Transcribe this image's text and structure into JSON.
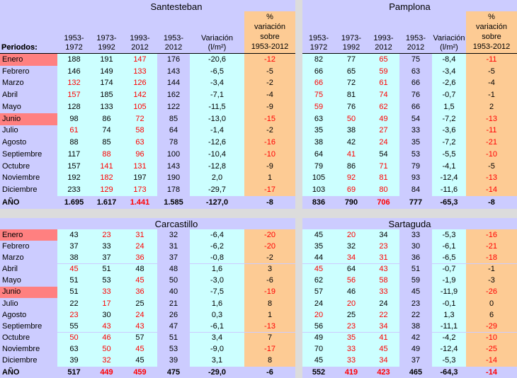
{
  "colors": {
    "background_lavender": "#CCCCFF",
    "data_cyan": "#CCFFFF",
    "pct_column_tan": "#FDCB94",
    "highlight_salmon": "#FF8080",
    "divider_gray": "#DCDCDC",
    "negative_highlight_text": "#FF0000",
    "normal_text": "#000000"
  },
  "column_headers": {
    "periodos": "Periodos:",
    "periods": [
      "1953-\n1972",
      "1973-\n1992",
      "1993-\n2012",
      "1953-\n2012"
    ],
    "variation": "Variación\n(l/m²)",
    "pct": "%\nvariación\nsobre\n1953-2012"
  },
  "months": [
    "Enero",
    "Febrero",
    "Marzo",
    "Abril",
    "Mayo",
    "Junio",
    "Julio",
    "Agosto",
    "Septiembre",
    "Octubre",
    "Noviembre",
    "Diciembre"
  ],
  "highlighted_months": [
    "Enero",
    "Junio"
  ],
  "total_label": "AÑO",
  "chart_data": [
    {
      "type": "table",
      "title": "Santesteban",
      "position": "top-left",
      "columns": [
        "Periodos:",
        "1953-1972",
        "1973-1992",
        "1993-2012",
        "1953-2012",
        "Variación (l/m²)",
        "% variación sobre 1953-2012"
      ],
      "rows": [
        {
          "values": [
            "188",
            "191",
            "147",
            "176",
            "-20,6",
            "-12"
          ],
          "red": [
            0,
            0,
            1,
            0,
            0,
            1
          ]
        },
        {
          "values": [
            "146",
            "149",
            "133",
            "143",
            "-6,5",
            "-5"
          ],
          "red": [
            0,
            0,
            1,
            0,
            0,
            0
          ]
        },
        {
          "values": [
            "132",
            "174",
            "126",
            "144",
            "-3,4",
            "-2"
          ],
          "red": [
            1,
            0,
            1,
            0,
            0,
            0
          ]
        },
        {
          "values": [
            "157",
            "185",
            "142",
            "162",
            "-7,1",
            "-4"
          ],
          "red": [
            1,
            0,
            1,
            0,
            0,
            0
          ]
        },
        {
          "values": [
            "128",
            "133",
            "105",
            "122",
            "-11,5",
            "-9"
          ],
          "red": [
            0,
            0,
            1,
            0,
            0,
            0
          ]
        },
        {
          "values": [
            "98",
            "86",
            "72",
            "85",
            "-13,0",
            "-15"
          ],
          "red": [
            0,
            0,
            1,
            0,
            0,
            1
          ]
        },
        {
          "values": [
            "61",
            "74",
            "58",
            "64",
            "-1,4",
            "-2"
          ],
          "red": [
            1,
            0,
            1,
            0,
            0,
            0
          ]
        },
        {
          "values": [
            "88",
            "85",
            "63",
            "78",
            "-12,6",
            "-16"
          ],
          "red": [
            0,
            0,
            1,
            0,
            0,
            1
          ]
        },
        {
          "values": [
            "117",
            "88",
            "96",
            "100",
            "-10,4",
            "-10"
          ],
          "red": [
            0,
            1,
            1,
            0,
            0,
            1
          ]
        },
        {
          "values": [
            "157",
            "141",
            "131",
            "143",
            "-12,8",
            "-9"
          ],
          "red": [
            0,
            1,
            1,
            0,
            0,
            0
          ]
        },
        {
          "values": [
            "192",
            "182",
            "197",
            "190",
            "2,0",
            "1"
          ],
          "red": [
            0,
            1,
            0,
            0,
            0,
            0
          ]
        },
        {
          "values": [
            "233",
            "129",
            "173",
            "178",
            "-29,7",
            "-17"
          ],
          "red": [
            0,
            1,
            1,
            0,
            0,
            1
          ]
        }
      ],
      "total": {
        "values": [
          "1.695",
          "1.617",
          "1.441",
          "1.585",
          "-127,0",
          "-8"
        ],
        "red": [
          0,
          0,
          1,
          0,
          0,
          0
        ]
      }
    },
    {
      "type": "table",
      "title": "Pamplona",
      "position": "top-right",
      "columns": [
        "1953-1972",
        "1973-1992",
        "1993-2012",
        "1953-2012",
        "Variación (l/m²)",
        "% variación sobre 1953-2012"
      ],
      "rows": [
        {
          "values": [
            "82",
            "77",
            "65",
            "75",
            "-8,4",
            "-11"
          ],
          "red": [
            0,
            0,
            1,
            0,
            0,
            1
          ]
        },
        {
          "values": [
            "66",
            "65",
            "59",
            "63",
            "-3,4",
            "-5"
          ],
          "red": [
            0,
            0,
            1,
            0,
            0,
            0
          ]
        },
        {
          "values": [
            "66",
            "72",
            "61",
            "66",
            "-2,6",
            "-4"
          ],
          "red": [
            1,
            0,
            1,
            0,
            0,
            0
          ]
        },
        {
          "values": [
            "75",
            "81",
            "74",
            "76",
            "-0,7",
            "-1"
          ],
          "red": [
            1,
            0,
            1,
            0,
            0,
            0
          ]
        },
        {
          "values": [
            "59",
            "76",
            "62",
            "66",
            "1,5",
            "2"
          ],
          "red": [
            1,
            0,
            1,
            0,
            0,
            0
          ]
        },
        {
          "values": [
            "63",
            "50",
            "49",
            "54",
            "-7,2",
            "-13"
          ],
          "red": [
            0,
            1,
            1,
            0,
            0,
            1
          ]
        },
        {
          "values": [
            "35",
            "38",
            "27",
            "33",
            "-3,6",
            "-11"
          ],
          "red": [
            0,
            0,
            1,
            0,
            0,
            1
          ]
        },
        {
          "values": [
            "38",
            "42",
            "24",
            "35",
            "-7,2",
            "-21"
          ],
          "red": [
            0,
            0,
            1,
            0,
            0,
            1
          ]
        },
        {
          "values": [
            "64",
            "41",
            "54",
            "53",
            "-5,5",
            "-10"
          ],
          "red": [
            0,
            1,
            0,
            0,
            0,
            1
          ]
        },
        {
          "values": [
            "79",
            "86",
            "71",
            "79",
            "-4,1",
            "-5"
          ],
          "red": [
            0,
            0,
            1,
            0,
            0,
            0
          ]
        },
        {
          "values": [
            "105",
            "92",
            "81",
            "93",
            "-12,4",
            "-13"
          ],
          "red": [
            0,
            1,
            1,
            0,
            0,
            1
          ]
        },
        {
          "values": [
            "103",
            "69",
            "80",
            "84",
            "-11,6",
            "-14"
          ],
          "red": [
            0,
            1,
            1,
            0,
            0,
            1
          ]
        }
      ],
      "total": {
        "values": [
          "836",
          "790",
          "706",
          "777",
          "-65,3",
          "-8"
        ],
        "red": [
          0,
          0,
          1,
          0,
          0,
          0
        ]
      }
    },
    {
      "type": "table",
      "title": "Carcastillo",
      "position": "bottom-left",
      "columns": [
        "Periodos:",
        "1953-1972",
        "1973-1992",
        "1993-2012",
        "1953-2012",
        "Variación (l/m²)",
        "% variación sobre 1953-2012"
      ],
      "rows": [
        {
          "values": [
            "43",
            "23",
            "31",
            "32",
            "-6,4",
            "-20"
          ],
          "red": [
            0,
            1,
            1,
            0,
            0,
            1
          ]
        },
        {
          "values": [
            "37",
            "33",
            "24",
            "31",
            "-6,2",
            "-20"
          ],
          "red": [
            0,
            0,
            1,
            0,
            0,
            1
          ]
        },
        {
          "values": [
            "38",
            "37",
            "36",
            "37",
            "-0,8",
            "-2"
          ],
          "red": [
            0,
            0,
            1,
            0,
            0,
            0
          ]
        },
        {
          "values": [
            "45",
            "51",
            "48",
            "48",
            "1,6",
            "3"
          ],
          "red": [
            1,
            0,
            0,
            0,
            0,
            0
          ]
        },
        {
          "values": [
            "51",
            "53",
            "45",
            "50",
            "-3,0",
            "-6"
          ],
          "red": [
            0,
            0,
            1,
            0,
            0,
            0
          ]
        },
        {
          "values": [
            "51",
            "33",
            "36",
            "40",
            "-7,5",
            "-19"
          ],
          "red": [
            0,
            1,
            1,
            0,
            0,
            1
          ]
        },
        {
          "values": [
            "22",
            "17",
            "25",
            "21",
            "1,6",
            "8"
          ],
          "red": [
            0,
            1,
            0,
            0,
            0,
            0
          ]
        },
        {
          "values": [
            "23",
            "30",
            "24",
            "26",
            "0,3",
            "1"
          ],
          "red": [
            1,
            0,
            1,
            0,
            0,
            0
          ]
        },
        {
          "values": [
            "55",
            "43",
            "43",
            "47",
            "-6,1",
            "-13"
          ],
          "red": [
            0,
            1,
            1,
            0,
            0,
            1
          ]
        },
        {
          "values": [
            "50",
            "46",
            "57",
            "51",
            "3,4",
            "7"
          ],
          "red": [
            1,
            1,
            0,
            0,
            0,
            0
          ]
        },
        {
          "values": [
            "63",
            "50",
            "45",
            "53",
            "-9,0",
            "-17"
          ],
          "red": [
            0,
            1,
            1,
            0,
            0,
            1
          ]
        },
        {
          "values": [
            "39",
            "32",
            "45",
            "39",
            "3,1",
            "8"
          ],
          "red": [
            0,
            1,
            0,
            0,
            0,
            0
          ]
        }
      ],
      "total": {
        "values": [
          "517",
          "449",
          "459",
          "475",
          "-29,0",
          "-6"
        ],
        "red": [
          0,
          1,
          1,
          0,
          0,
          0
        ]
      }
    },
    {
      "type": "table",
      "title": "Sartaguda",
      "position": "bottom-right",
      "columns": [
        "1953-1972",
        "1973-1992",
        "1993-2012",
        "1953-2012",
        "Variación (l/m²)",
        "% variación sobre 1953-2012"
      ],
      "rows": [
        {
          "values": [
            "45",
            "20",
            "34",
            "33",
            "-5,3",
            "-16"
          ],
          "red": [
            0,
            1,
            0,
            0,
            0,
            1
          ]
        },
        {
          "values": [
            "35",
            "32",
            "23",
            "30",
            "-6,1",
            "-21"
          ],
          "red": [
            0,
            0,
            1,
            0,
            0,
            1
          ]
        },
        {
          "values": [
            "44",
            "34",
            "31",
            "36",
            "-6,5",
            "-18"
          ],
          "red": [
            0,
            1,
            1,
            0,
            0,
            1
          ]
        },
        {
          "values": [
            "45",
            "64",
            "43",
            "51",
            "-0,7",
            "-1"
          ],
          "red": [
            1,
            0,
            1,
            0,
            0,
            0
          ]
        },
        {
          "values": [
            "62",
            "56",
            "58",
            "59",
            "-1,9",
            "-3"
          ],
          "red": [
            0,
            1,
            1,
            0,
            0,
            0
          ]
        },
        {
          "values": [
            "57",
            "46",
            "33",
            "45",
            "-11,9",
            "-26"
          ],
          "red": [
            0,
            0,
            1,
            0,
            0,
            1
          ]
        },
        {
          "values": [
            "24",
            "20",
            "24",
            "23",
            "-0,1",
            "0"
          ],
          "red": [
            0,
            1,
            0,
            0,
            0,
            0
          ]
        },
        {
          "values": [
            "20",
            "25",
            "22",
            "22",
            "1,3",
            "6"
          ],
          "red": [
            1,
            0,
            1,
            0,
            0,
            0
          ]
        },
        {
          "values": [
            "56",
            "23",
            "34",
            "38",
            "-11,1",
            "-29"
          ],
          "red": [
            0,
            1,
            1,
            0,
            0,
            1
          ]
        },
        {
          "values": [
            "49",
            "35",
            "41",
            "42",
            "-4,2",
            "-10"
          ],
          "red": [
            0,
            1,
            1,
            0,
            0,
            1
          ]
        },
        {
          "values": [
            "70",
            "33",
            "45",
            "49",
            "-12,4",
            "-25"
          ],
          "red": [
            0,
            1,
            1,
            0,
            0,
            1
          ]
        },
        {
          "values": [
            "45",
            "33",
            "34",
            "37",
            "-5,3",
            "-14"
          ],
          "red": [
            0,
            1,
            1,
            0,
            0,
            1
          ]
        }
      ],
      "total": {
        "values": [
          "552",
          "419",
          "423",
          "465",
          "-64,3",
          "-14"
        ],
        "red": [
          0,
          1,
          1,
          0,
          0,
          1
        ]
      }
    }
  ]
}
